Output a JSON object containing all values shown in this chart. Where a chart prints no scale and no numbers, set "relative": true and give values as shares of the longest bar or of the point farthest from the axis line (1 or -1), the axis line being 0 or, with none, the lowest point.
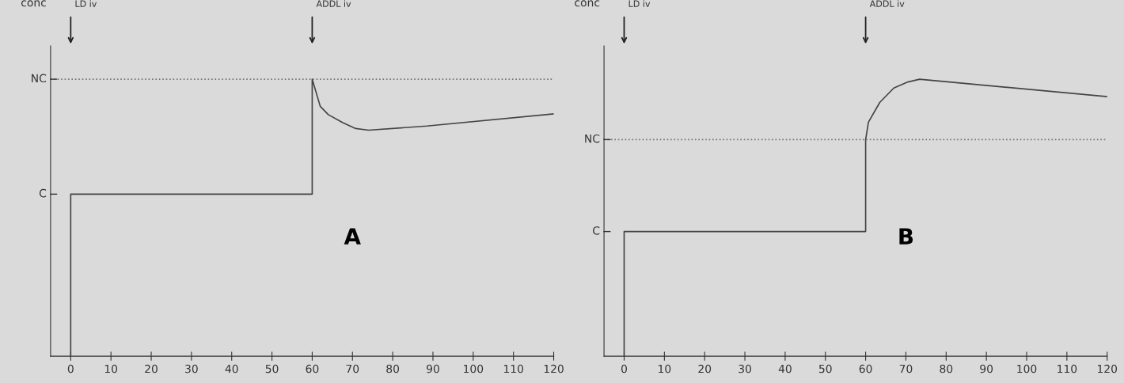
{
  "chart_data": [
    {
      "type": "line",
      "relative": true,
      "ylabel": "conc",
      "annotations": [
        "C",
        "LD iv",
        "ADDL iv",
        "A"
      ],
      "series": [
        {
          "color": "#444444",
          "x": [
            0,
            0,
            60,
            60,
            62,
            64,
            67.6,
            70.8,
            74,
            88.5,
            120
          ],
          "values": [
            0,
            0.585,
            0.585,
            1,
            0.902,
            0.872,
            0.843,
            0.822,
            0.816,
            0.831,
            0.875
          ]
        }
      ],
      "xlim": [
        -5,
        120
      ],
      "xticks": [
        0,
        10,
        20,
        30,
        40,
        50,
        60,
        70,
        80,
        90,
        100,
        110,
        120
      ],
      "ref_lines": [
        {
          "axis": "y",
          "value": 1,
          "label": "NC",
          "line_style": "dotted",
          "color": "#777777"
        }
      ],
      "grid": false,
      "marker": "none",
      "line_style": "solid"
    },
    {
      "type": "line",
      "relative": true,
      "ylabel": "conc",
      "annotations": [
        "C",
        "LD iv",
        "ADDL iv",
        "B"
      ],
      "series": [
        {
          "color": "#444444",
          "x": [
            0,
            0,
            60,
            60,
            60.7,
            63.5,
            67,
            70.5,
            73.4,
            120
          ],
          "values": [
            0,
            0.45,
            0.45,
            0.782,
            0.845,
            0.916,
            0.968,
            0.99,
            1,
            0.937
          ]
        }
      ],
      "xlim": [
        -5,
        120
      ],
      "xticks": [
        0,
        10,
        20,
        30,
        40,
        50,
        60,
        70,
        80,
        90,
        100,
        110,
        120
      ],
      "ref_lines": [
        {
          "axis": "y",
          "value": 0.782,
          "label": "NC",
          "line_style": "dotted",
          "color": "#777777"
        }
      ],
      "grid": false,
      "marker": "none",
      "line_style": "solid"
    }
  ]
}
